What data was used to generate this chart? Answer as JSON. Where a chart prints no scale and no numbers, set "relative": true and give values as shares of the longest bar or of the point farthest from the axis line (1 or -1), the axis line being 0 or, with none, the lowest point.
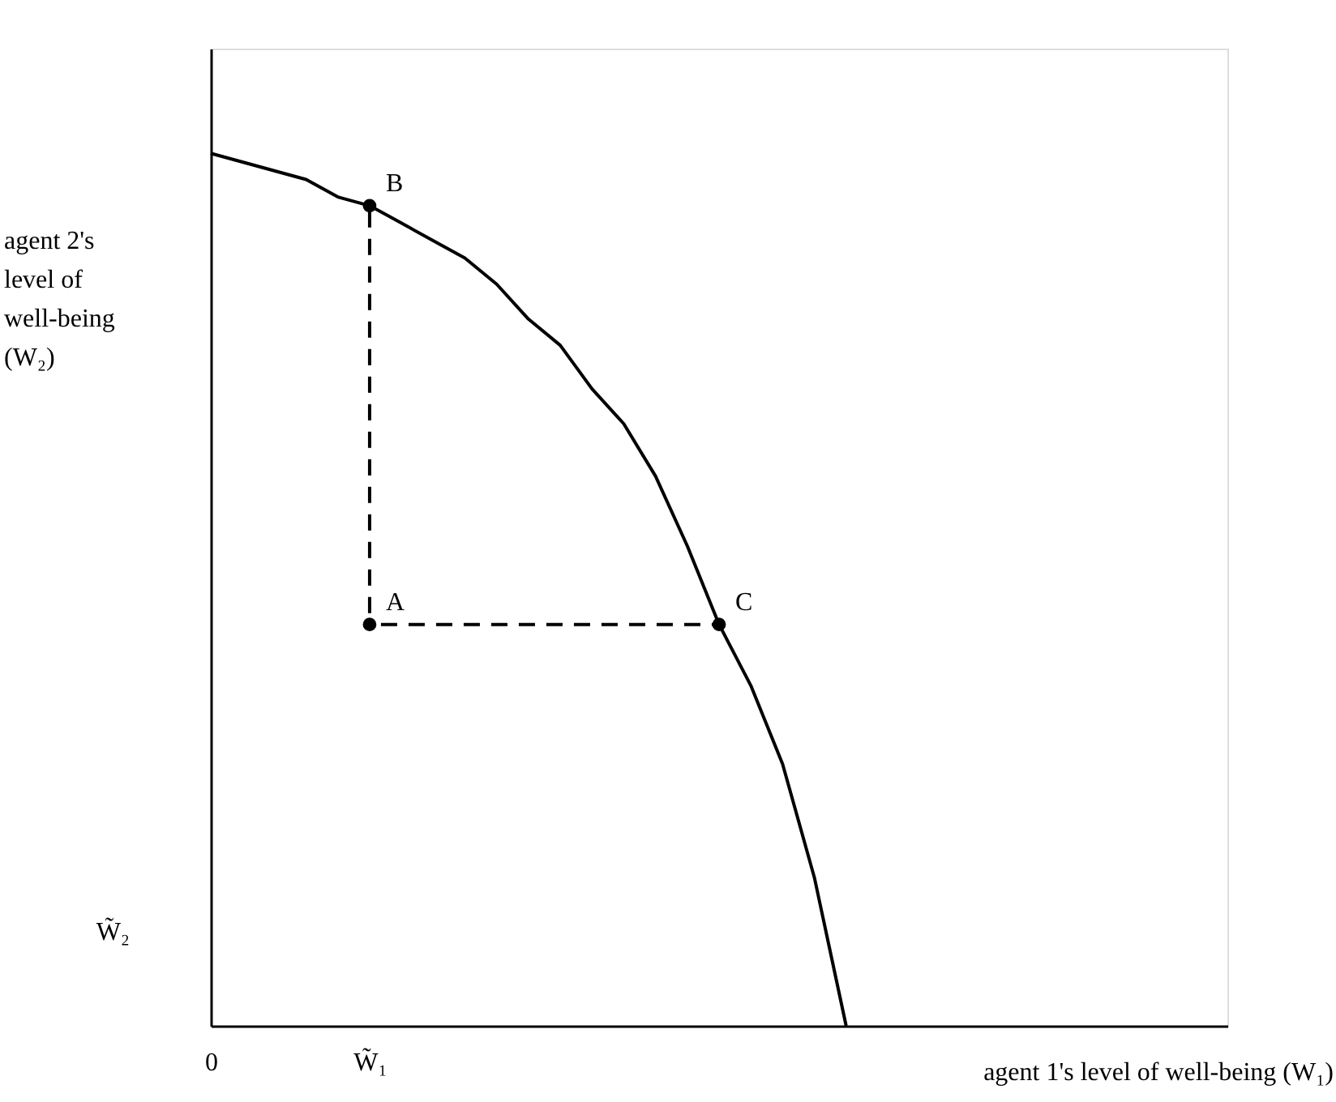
{
  "chart_data": {
    "type": "line",
    "relative": true,
    "xlabel": "agent 1's level of well-being (W₁)",
    "ylabel": "agent 2's level of well-being (W₂)",
    "grid": false,
    "legend": false,
    "categories": [
      "0",
      null,
      null,
      null,
      null,
      "W̃₁",
      null,
      null,
      null,
      null,
      null,
      null,
      null,
      null,
      null,
      null,
      null,
      null,
      null,
      null,
      null,
      null,
      null,
      null,
      null,
      null,
      null,
      null,
      null,
      null,
      null,
      null,
      null
    ],
    "series": [
      {
        "type": "line",
        "color": "#000000",
        "line_style": "solid",
        "marker": "none",
        "values": [
          1.0,
          0.99,
          0.98,
          0.97,
          0.95,
          0.94,
          0.92,
          0.9,
          0.88,
          0.85,
          0.81,
          0.78,
          0.73,
          0.69,
          0.63,
          0.55,
          0.46,
          0.39,
          0.3,
          0.17,
          0.0,
          null,
          null,
          null,
          null,
          null,
          null,
          null,
          null,
          null,
          null,
          null,
          null
        ]
      },
      {
        "type": "line",
        "color": "#000000",
        "line_style": "dashed",
        "marker": "none",
        "x": [
          "W̃₁",
          "W̃₁"
        ],
        "values": [
          0.46,
          0.94
        ]
      },
      {
        "type": "line",
        "color": "#000000",
        "line_style": "dashed",
        "marker": "none",
        "values": [
          null,
          null,
          null,
          null,
          null,
          0.46,
          0.46,
          0.46,
          0.46,
          0.46,
          0.46,
          0.46,
          0.46,
          0.46,
          0.46,
          0.46,
          0.46,
          null,
          null,
          null,
          null,
          null,
          null,
          null,
          null,
          null,
          null,
          null,
          null,
          null,
          null,
          null,
          null
        ]
      },
      {
        "type": "scatter",
        "name": "A",
        "color": "#000000",
        "marker": "circle",
        "x": [
          "W̃₁"
        ],
        "values": [
          0.46
        ]
      },
      {
        "type": "scatter",
        "name": "B",
        "color": "#000000",
        "marker": "circle",
        "x": [
          "W̃₁"
        ],
        "values": [
          0.94
        ]
      },
      {
        "type": "scatter",
        "name": "C",
        "color": "#000000",
        "marker": "circle",
        "values": [
          null,
          null,
          null,
          null,
          null,
          null,
          null,
          null,
          null,
          null,
          null,
          null,
          null,
          null,
          null,
          null,
          0.46,
          null,
          null,
          null,
          null,
          null,
          null,
          null,
          null,
          null,
          null,
          null,
          null,
          null,
          null,
          null,
          null
        ]
      }
    ],
    "annotations": [
      "W̃₂"
    ]
  }
}
